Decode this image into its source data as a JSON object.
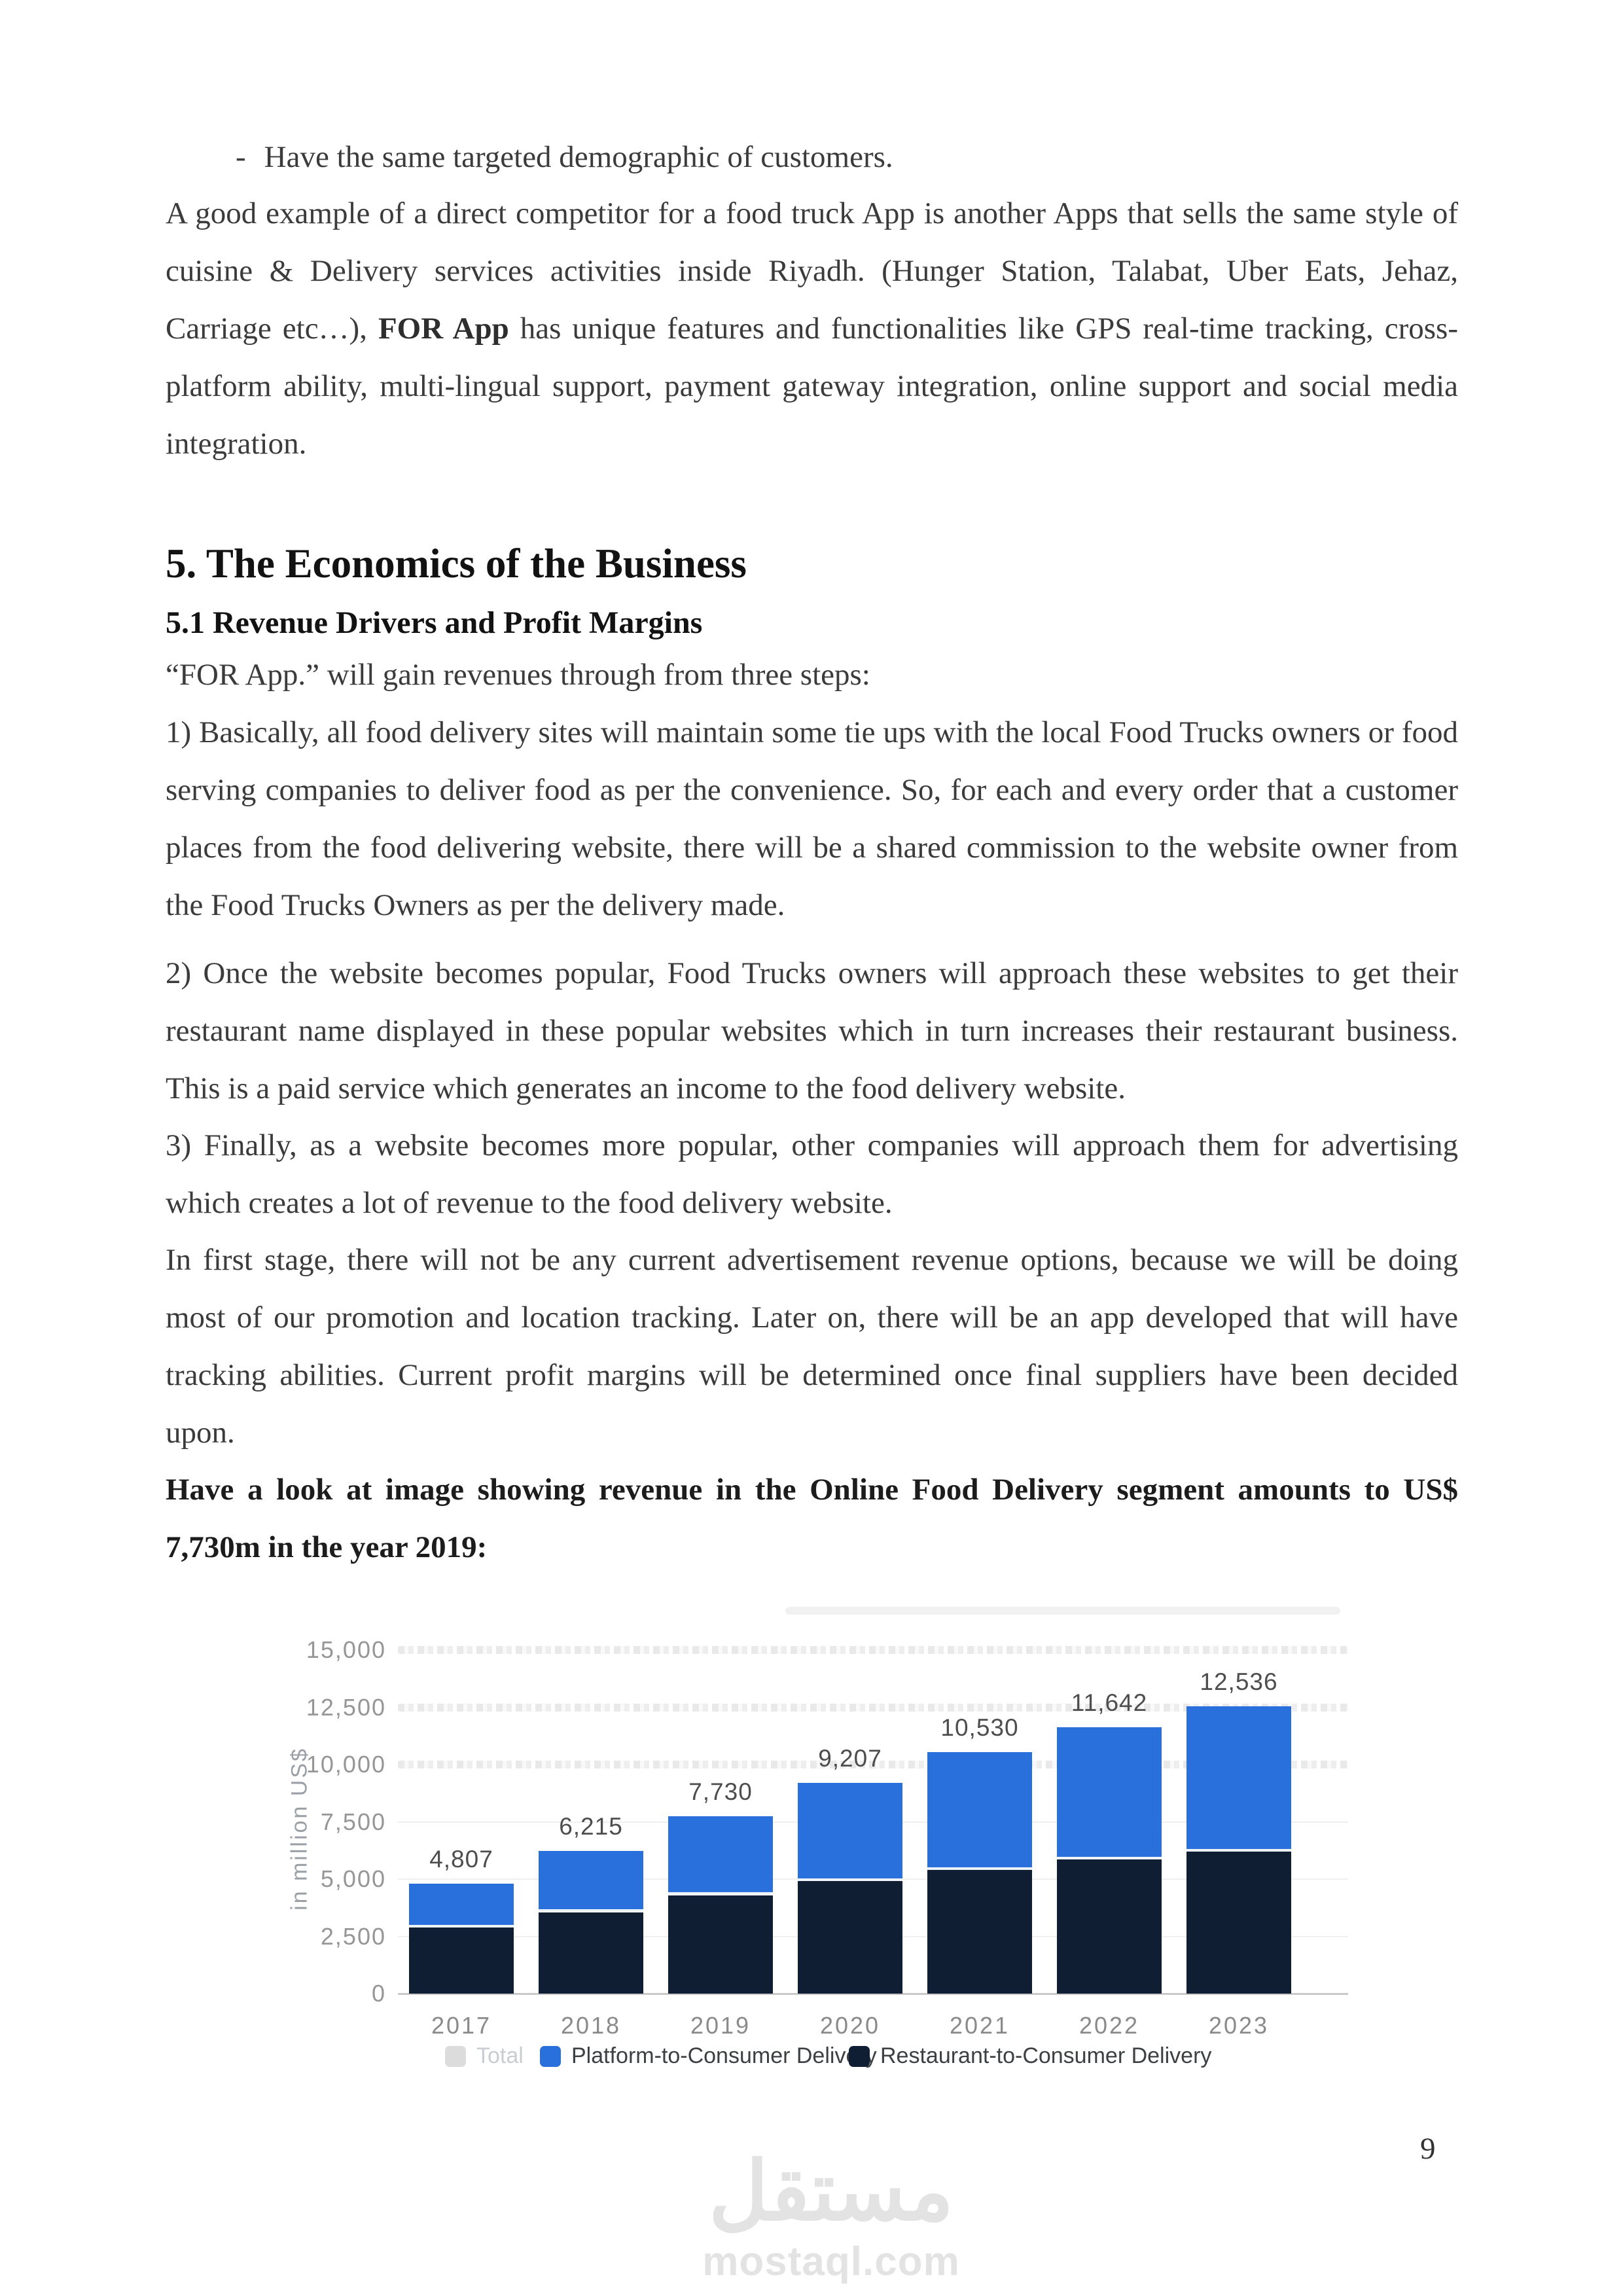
{
  "content": {
    "bullet_dash": "-",
    "bullet_text": "Have the same targeted demographic of customers.",
    "para_competitor": {
      "part1": "A good example of a direct competitor for a food truck App is another Apps that sells the same style of cuisine & Delivery services activities inside Riyadh. (Hunger Station, Talabat, Uber Eats, Jehaz, Carriage etc…), ",
      "bold": "FOR App",
      "part2": " has unique features and functionalities like GPS real-time tracking, cross-platform ability, multi-lingual support, payment gateway integration, online support and social media integration."
    },
    "heading": "5. The Economics of the Business",
    "subheading": "5.1 Revenue Drivers and Profit Margins",
    "intro_line": "“FOR App.” will gain revenues through from three steps:",
    "step1": "1) Basically, all food delivery sites will maintain some tie ups with the local Food Trucks owners or food serving companies to deliver food as per the convenience. So, for each and every order that a customer places from the food delivering website, there will be a shared commission to the website owner from the Food Trucks Owners as per the delivery made.",
    "step2": "2) Once the website becomes popular, Food Trucks owners will approach these websites to get their restaurant name displayed in these popular websites which in turn increases their restaurant business. This is a paid service which generates an income to the food delivery website.",
    "step3": "3) Finally, as a website becomes more popular, other companies will approach them for advertising which creates a lot of revenue to the food delivery website.",
    "stage_para": "In first stage, there will not be any current advertisement revenue options, because we will be doing most of our promotion and location tracking. Later on, there will be an app developed that will have tracking abilities.  Current profit margins will be determined once final suppliers have been decided upon.",
    "cta_line": "Have a look at image showing revenue in the Online Food Delivery segment amounts to US$ 7,730m in the year 2019:"
  },
  "chart_data": {
    "type": "bar",
    "stacked": true,
    "ylabel": "in million US$",
    "categories": [
      "2017",
      "2018",
      "2019",
      "2020",
      "2021",
      "2022",
      "2023"
    ],
    "series": [
      {
        "name": "Restaurant-to-Consumer Delivery",
        "color": "#101e33",
        "values": [
          2880,
          3557,
          4300,
          4910,
          5390,
          5853,
          6197
        ]
      },
      {
        "name": "Platform-to-Consumer Delivery",
        "color": "#2a70dc",
        "values": [
          1927,
          2658,
          3430,
          4297,
          5140,
          5789,
          6339
        ]
      }
    ],
    "totals": [
      4807,
      6215,
      7730,
      9207,
      10530,
      11642,
      12536
    ],
    "total_labels": [
      "4,807",
      "6,215",
      "7,730",
      "9,207",
      "10,530",
      "11,642",
      "12,536"
    ],
    "y_ticks": [
      "15,000",
      "12,500",
      "10,000",
      "7,500",
      "5,000",
      "2,500",
      "0"
    ],
    "y_tick_values": [
      15000,
      12500,
      10000,
      7500,
      5000,
      2500,
      0
    ],
    "ylim": [
      0,
      15000
    ],
    "grid": "horizontal",
    "legend_position": "bottom",
    "legend": [
      {
        "label": "Total",
        "color": "#dcdcdc",
        "disabled": true
      },
      {
        "label": "Platform-to-Consumer Delivery",
        "color": "#2a70dc",
        "disabled": false
      },
      {
        "label": "Restaurant-to-Consumer Delivery",
        "color": "#101e33",
        "disabled": false
      }
    ]
  },
  "footer": {
    "watermark_arabic": "مستقل",
    "watermark_latin": "mostaql.com",
    "page_number": "9"
  }
}
